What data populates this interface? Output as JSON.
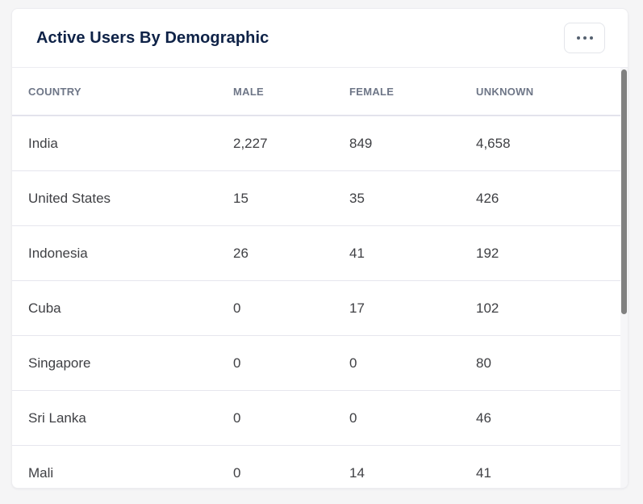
{
  "card": {
    "title": "Active Users By Demographic"
  },
  "menu": {
    "icon": "ellipsis-icon"
  },
  "table": {
    "columns": [
      "COUNTRY",
      "MALE",
      "FEMALE",
      "UNKNOWN"
    ],
    "rows": [
      {
        "country": "India",
        "male": "2,227",
        "female": "849",
        "unknown": "4,658"
      },
      {
        "country": "United States",
        "male": "15",
        "female": "35",
        "unknown": "426"
      },
      {
        "country": "Indonesia",
        "male": "26",
        "female": "41",
        "unknown": "192"
      },
      {
        "country": "Cuba",
        "male": "0",
        "female": "17",
        "unknown": "102"
      },
      {
        "country": "Singapore",
        "male": "0",
        "female": "0",
        "unknown": "80"
      },
      {
        "country": "Sri Lanka",
        "male": "0",
        "female": "0",
        "unknown": "46"
      },
      {
        "country": "Mali",
        "male": "0",
        "female": "14",
        "unknown": "41"
      }
    ]
  },
  "scrollbar": {
    "position": "top"
  },
  "colors": {
    "title": "#0e2247",
    "header_text": "#6e7687",
    "cell_text": "#3f4044",
    "row_divider": "#e6e6ee",
    "card_background": "#ffffff",
    "page_background": "#f5f5f6",
    "button_border": "#e3e5ea",
    "scrollbar_thumb": "#808080"
  },
  "chart_data": {
    "type": "table",
    "title": "Active Users By Demographic",
    "columns": [
      "COUNTRY",
      "MALE",
      "FEMALE",
      "UNKNOWN"
    ],
    "rows": [
      [
        "India",
        2227,
        849,
        4658
      ],
      [
        "United States",
        15,
        35,
        426
      ],
      [
        "Indonesia",
        26,
        41,
        192
      ],
      [
        "Cuba",
        0,
        17,
        102
      ],
      [
        "Singapore",
        0,
        0,
        80
      ],
      [
        "Sri Lanka",
        0,
        0,
        46
      ],
      [
        "Mali",
        0,
        14,
        41
      ]
    ]
  }
}
